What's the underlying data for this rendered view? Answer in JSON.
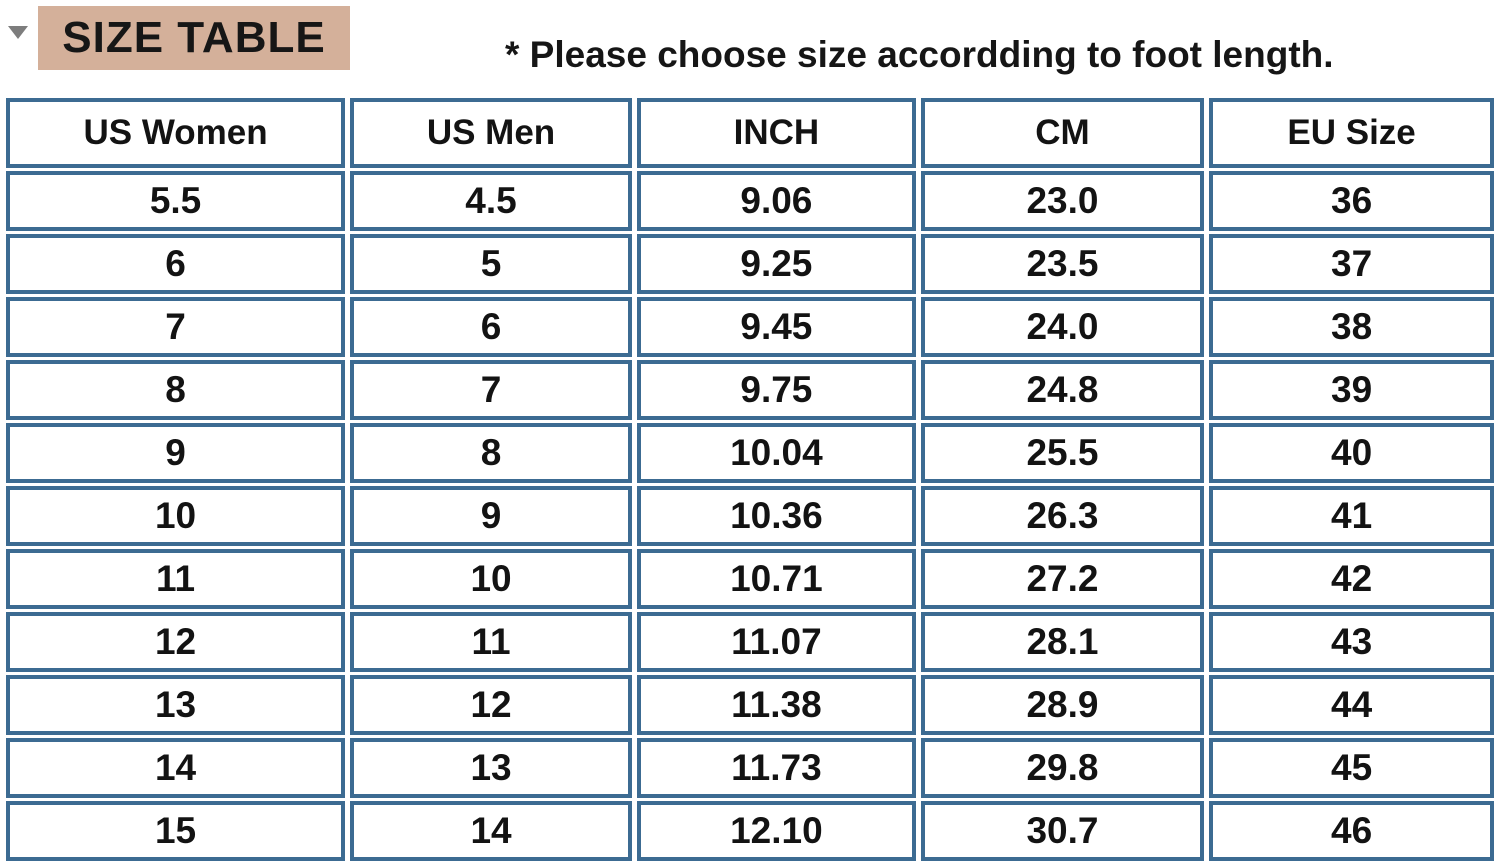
{
  "colors": {
    "title_bg": "#d4b09a",
    "border_blue": "#3c6b92",
    "text_black": "#111111",
    "triangle_gray": "#7d7d7d"
  },
  "header": {
    "title": "SIZE TABLE",
    "note": "* Please choose size accordding to foot length.",
    "collapse_icon": "triangle-down"
  },
  "table": {
    "columns": [
      "US Women",
      "US Men",
      "INCH",
      "CM",
      "EU Size"
    ],
    "rows": [
      [
        "5.5",
        "4.5",
        "9.06",
        "23.0",
        "36"
      ],
      [
        "6",
        "5",
        "9.25",
        "23.5",
        "37"
      ],
      [
        "7",
        "6",
        "9.45",
        "24.0",
        "38"
      ],
      [
        "8",
        "7",
        "9.75",
        "24.8",
        "39"
      ],
      [
        "9",
        "8",
        "10.04",
        "25.5",
        "40"
      ],
      [
        "10",
        "9",
        "10.36",
        "26.3",
        "41"
      ],
      [
        "11",
        "10",
        "10.71",
        "27.2",
        "42"
      ],
      [
        "12",
        "11",
        "11.07",
        "28.1",
        "43"
      ],
      [
        "13",
        "12",
        "11.38",
        "28.9",
        "44"
      ],
      [
        "14",
        "13",
        "11.73",
        "29.8",
        "45"
      ],
      [
        "15",
        "14",
        "12.10",
        "30.7",
        "46"
      ]
    ]
  }
}
